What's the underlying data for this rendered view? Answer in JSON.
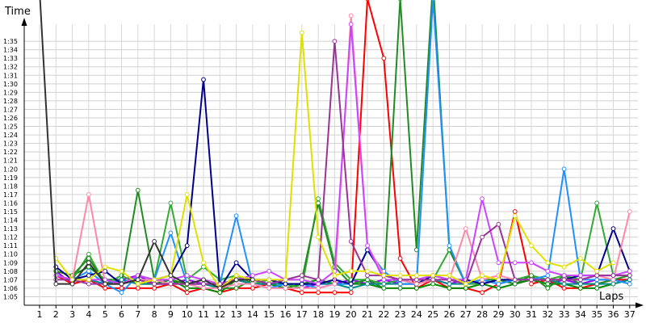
{
  "chart_data": {
    "type": "line",
    "ylabel": "Time",
    "xlabel": "Laps",
    "ylim": [
      "1:04",
      "1:37"
    ],
    "y_ticks": [
      "1:05",
      "1:06",
      "1:07",
      "1:08",
      "1:09",
      "1:10",
      "1:11",
      "1:12",
      "1:13",
      "1:14",
      "1:15",
      "1:16",
      "1:17",
      "1:18",
      "1:19",
      "1:20",
      "1:21",
      "1:22",
      "1:23",
      "1:24",
      "1:25",
      "1:26",
      "1:27",
      "1:28",
      "1:29",
      "1:30",
      "1:31",
      "1:32",
      "1:33",
      "1:34",
      "1:35"
    ],
    "x_ticks": [
      "1",
      "2",
      "3",
      "4",
      "5",
      "6",
      "7",
      "8",
      "9",
      "10",
      "11",
      "12",
      "13",
      "14",
      "15",
      "16",
      "17",
      "18",
      "19",
      "20",
      "21",
      "22",
      "23",
      "24",
      "25",
      "26",
      "27",
      "28",
      "29",
      "30",
      "31",
      "32",
      "33",
      "34",
      "35",
      "36",
      "37"
    ],
    "grid": true,
    "series": [
      {
        "color": "#9900ff",
        "values": [
          null,
          68.0,
          66.5,
          67.0,
          66.5,
          67.0,
          67.5,
          66.5,
          66.5,
          67.0,
          66.5,
          66.5,
          67.0,
          66.5,
          66.5,
          66.5,
          66.0,
          66.5,
          66.5,
          67.0,
          66.5,
          67.0,
          66.5,
          66.5,
          67.0,
          66.5,
          67.0,
          66.5,
          67.0,
          66.5,
          67.0,
          66.5,
          67.0,
          66.5,
          67.0,
          67.0,
          67.0
        ]
      },
      {
        "color": "#ff0000",
        "values": [
          null,
          67.5,
          66.5,
          67.0,
          66.0,
          66.0,
          66.0,
          66.0,
          66.5,
          65.5,
          66.0,
          65.5,
          66.0,
          66.0,
          66.5,
          66.0,
          65.5,
          65.5,
          65.5,
          65.5,
          100.0,
          93.0,
          69.5,
          66.0,
          67.0,
          66.0,
          66.0,
          65.5,
          66.5,
          75.0,
          66.5,
          67.0,
          66.0,
          66.0,
          66.5,
          67.0,
          67.0
        ]
      },
      {
        "color": "#008800",
        "values": [
          null,
          68.0,
          67.5,
          68.5,
          67.0,
          67.0,
          66.5,
          66.5,
          67.0,
          66.0,
          66.0,
          65.5,
          67.0,
          66.5,
          66.5,
          66.0,
          66.5,
          67.0,
          66.5,
          66.5,
          66.5,
          66.0,
          66.0,
          66.0,
          66.5,
          66.0,
          66.0,
          66.5,
          66.0,
          66.5,
          67.0,
          66.5,
          66.5,
          66.0,
          66.0,
          66.5,
          67.0
        ]
      },
      {
        "color": "#33aa33",
        "values": [
          null,
          67.5,
          67.0,
          70.0,
          66.5,
          67.5,
          66.5,
          67.0,
          76.0,
          67.0,
          68.5,
          67.0,
          67.5,
          66.5,
          67.0,
          66.5,
          66.0,
          76.5,
          69.0,
          67.0,
          67.0,
          66.5,
          67.0,
          67.0,
          67.0,
          70.5,
          66.5,
          66.5,
          67.0,
          67.0,
          67.5,
          67.0,
          67.5,
          67.0,
          76.0,
          67.5,
          67.5
        ]
      },
      {
        "color": "#228b22",
        "values": [
          null,
          68.0,
          67.5,
          69.5,
          66.5,
          66.5,
          77.5,
          67.0,
          67.0,
          66.5,
          66.5,
          66.0,
          66.0,
          67.0,
          66.5,
          67.0,
          67.0,
          76.0,
          68.5,
          66.5,
          67.0,
          66.0,
          100.0,
          70.5,
          102.0,
          70.5,
          66.5,
          67.0,
          67.0,
          66.5,
          67.5,
          66.0,
          67.5,
          66.5,
          66.5,
          67.0,
          67.5
        ]
      },
      {
        "color": "#008b8b",
        "values": [
          null,
          67.5,
          67.0,
          67.0,
          66.5,
          67.0,
          66.5,
          66.5,
          66.5,
          66.5,
          66.5,
          66.0,
          67.0,
          66.5,
          66.5,
          66.5,
          66.5,
          66.5,
          66.5,
          66.0,
          66.5,
          66.5,
          66.5,
          66.5,
          67.0,
          66.5,
          66.5,
          67.0,
          66.5,
          67.0,
          67.0,
          67.0,
          66.5,
          66.5,
          66.5,
          66.5,
          67.0
        ]
      },
      {
        "color": "#1e90ff",
        "values": [
          null,
          67.5,
          67.0,
          68.0,
          66.5,
          65.5,
          67.5,
          67.0,
          72.5,
          66.5,
          66.5,
          66.5,
          74.5,
          66.5,
          66.0,
          66.5,
          66.5,
          66.0,
          66.5,
          66.5,
          70.5,
          68.0,
          66.5,
          66.5,
          100.0,
          71.0,
          66.5,
          67.0,
          66.5,
          67.0,
          67.0,
          67.5,
          80.0,
          67.0,
          67.0,
          67.0,
          66.5
        ]
      },
      {
        "color": "#00008b",
        "values": [
          null,
          68.5,
          67.0,
          67.5,
          68.0,
          66.5,
          67.0,
          67.0,
          67.5,
          71.0,
          90.5,
          66.0,
          69.0,
          67.0,
          67.0,
          66.5,
          66.5,
          66.5,
          67.0,
          66.5,
          70.5,
          67.5,
          67.0,
          66.5,
          67.5,
          67.0,
          67.0,
          66.5,
          67.0,
          67.0,
          67.0,
          67.0,
          67.0,
          67.5,
          67.5,
          73.0,
          68.0
        ]
      },
      {
        "color": "#ff88aa",
        "values": [
          null,
          67.5,
          67.0,
          77.0,
          66.5,
          66.5,
          67.0,
          67.0,
          66.5,
          66.5,
          66.0,
          66.0,
          66.5,
          66.5,
          66.0,
          66.0,
          66.0,
          66.0,
          66.5,
          98.0,
          71.0,
          67.5,
          67.0,
          66.5,
          67.0,
          67.0,
          73.0,
          67.0,
          67.5,
          67.0,
          67.0,
          67.0,
          67.0,
          67.0,
          67.5,
          67.0,
          75.0
        ]
      },
      {
        "color": "#cc44ff",
        "values": [
          null,
          67.5,
          67.0,
          67.0,
          67.0,
          66.5,
          67.5,
          67.0,
          67.0,
          67.5,
          67.0,
          66.5,
          67.0,
          67.5,
          68.0,
          67.0,
          67.0,
          66.5,
          68.0,
          97.0,
          71.0,
          67.0,
          67.0,
          67.0,
          67.5,
          67.0,
          67.0,
          76.5,
          69.0,
          69.0,
          69.0,
          68.0,
          67.5,
          67.5,
          67.5,
          67.5,
          68.0
        ]
      },
      {
        "color": "#993399",
        "values": [
          null,
          67.0,
          67.0,
          66.5,
          66.5,
          66.5,
          67.0,
          66.5,
          66.5,
          66.5,
          66.5,
          66.5,
          67.0,
          67.0,
          66.5,
          67.0,
          67.5,
          67.0,
          95.0,
          71.5,
          67.5,
          67.5,
          67.0,
          67.0,
          67.0,
          67.0,
          66.5,
          72.0,
          73.5,
          67.0,
          67.0,
          67.0,
          67.0,
          67.0,
          67.5,
          67.5,
          67.5
        ]
      },
      {
        "color": "#e0e000",
        "values": [
          null,
          69.5,
          67.0,
          67.0,
          68.5,
          68.0,
          66.5,
          67.0,
          67.5,
          77.0,
          69.0,
          66.0,
          67.5,
          67.0,
          67.0,
          67.0,
          96.0,
          72.0,
          67.5,
          68.0,
          68.0,
          67.5,
          67.5,
          67.5,
          67.5,
          67.5,
          66.5,
          67.5,
          67.0,
          74.5,
          71.0,
          69.0,
          68.5,
          69.5,
          68.0,
          69.0,
          null
        ]
      },
      {
        "color": "#333333",
        "values": [
          101.0,
          66.5,
          66.5,
          69.0,
          66.5,
          66.5,
          67.0,
          71.5,
          67.5,
          66.5,
          67.0,
          66.0,
          67.0,
          67.0,
          null,
          null,
          null,
          null,
          null,
          null,
          null,
          null,
          null,
          null,
          null,
          null,
          null,
          null,
          null,
          null,
          null,
          null,
          null,
          null,
          null,
          null,
          null
        ]
      }
    ]
  }
}
